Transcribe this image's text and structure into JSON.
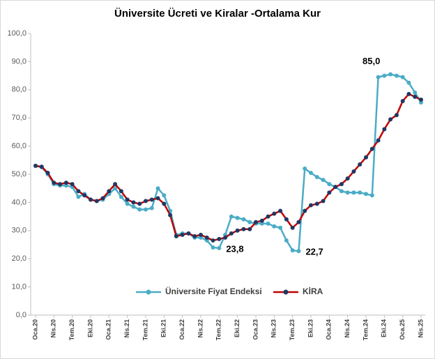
{
  "chart_data": {
    "type": "line",
    "title": "Üniversite Ücreti ve Kiralar -Ortalama Kur",
    "categories": [
      "Oca.20",
      null,
      null,
      "Nis.20",
      null,
      null,
      "Tem.20",
      null,
      null,
      "Eki.20",
      null,
      null,
      "Oca.21",
      null,
      null,
      "Nis.21",
      null,
      null,
      "Tem.21",
      null,
      null,
      "Eki.21",
      null,
      null,
      "Oca.22",
      null,
      null,
      "Nis.22",
      null,
      null,
      "Tem.22",
      null,
      null,
      "Eki.22",
      null,
      null,
      "Oca.23",
      null,
      null,
      "Nis.23",
      null,
      null,
      "Tem.23",
      null,
      null,
      "Eki.23",
      null,
      null,
      "Oca.24",
      null,
      null,
      "Nis.24",
      null,
      null,
      "Tem.24",
      null,
      null,
      "Eki.24",
      null,
      null,
      "Oca.25",
      null,
      null,
      "Nis.25"
    ],
    "series": [
      {
        "name": "Üniversite Fiyat Endeksi",
        "color": "#4bacc6",
        "marker_color": "#4bacc6",
        "values": [
          53,
          52.5,
          50,
          46.5,
          46,
          46,
          45.5,
          42,
          43,
          41,
          40.5,
          41,
          43,
          45,
          42,
          39.5,
          38.5,
          37.5,
          37.5,
          38,
          45,
          42.5,
          37,
          28.5,
          29,
          29,
          27.5,
          27.5,
          26.5,
          24,
          23.8,
          28.5,
          35,
          34.5,
          34,
          33,
          32.5,
          32.5,
          32.5,
          31.5,
          31,
          26.5,
          23,
          22.7,
          52,
          50.5,
          49,
          48,
          46.5,
          45.5,
          44,
          43.5,
          43.5,
          43.5,
          43,
          42.5,
          84.5,
          85,
          85.5,
          85,
          84.5,
          82.5,
          79,
          75.5
        ],
        "value_labels": [
          null,
          null,
          null,
          null,
          null,
          null,
          null,
          null,
          null,
          null,
          null,
          null,
          null,
          null,
          null,
          null,
          null,
          null,
          null,
          null,
          null,
          null,
          null,
          null,
          null,
          null,
          null,
          null,
          null,
          null,
          "23,8",
          null,
          null,
          null,
          null,
          null,
          null,
          null,
          null,
          null,
          null,
          null,
          null,
          "22,7",
          null,
          null,
          null,
          null,
          null,
          null,
          null,
          null,
          null,
          null,
          null,
          null,
          null,
          "85,0",
          null,
          null,
          null,
          null,
          null,
          null
        ]
      },
      {
        "name": "KİRA",
        "color": "#c00000",
        "marker_color": "#1f3864",
        "values": [
          53,
          52.7,
          50.5,
          47,
          46.5,
          47,
          46.5,
          44,
          42.5,
          41,
          40.5,
          41.5,
          44,
          46.5,
          44,
          41,
          40,
          39.5,
          40.5,
          41,
          41.5,
          39.5,
          35.5,
          28,
          28.5,
          29,
          28,
          28.5,
          27.5,
          26.5,
          27,
          27.5,
          29,
          30,
          30.5,
          30.5,
          33,
          33.5,
          35,
          36,
          37,
          34,
          31,
          33,
          37,
          39,
          39.5,
          40.5,
          43.5,
          45.5,
          46.5,
          48.5,
          51,
          53.5,
          56,
          59,
          62,
          66,
          69.5,
          71,
          76,
          78.5,
          77.5,
          76.5
        ]
      }
    ],
    "ylim": [
      0,
      100
    ],
    "yticks": [
      {
        "value": 0,
        "label": "0,0"
      },
      {
        "value": 10,
        "label": "10,0"
      },
      {
        "value": 20,
        "label": "20,0"
      },
      {
        "value": 30,
        "label": "30,0"
      },
      {
        "value": 40,
        "label": "40,0"
      },
      {
        "value": 50,
        "label": "50,0"
      },
      {
        "value": 60,
        "label": "60,0"
      },
      {
        "value": 70,
        "label": "70,0"
      },
      {
        "value": 80,
        "label": "80,0"
      },
      {
        "value": 90,
        "label": "90,0"
      },
      {
        "value": 100,
        "label": "100,0"
      }
    ],
    "grid": false,
    "legend": "bottom"
  }
}
